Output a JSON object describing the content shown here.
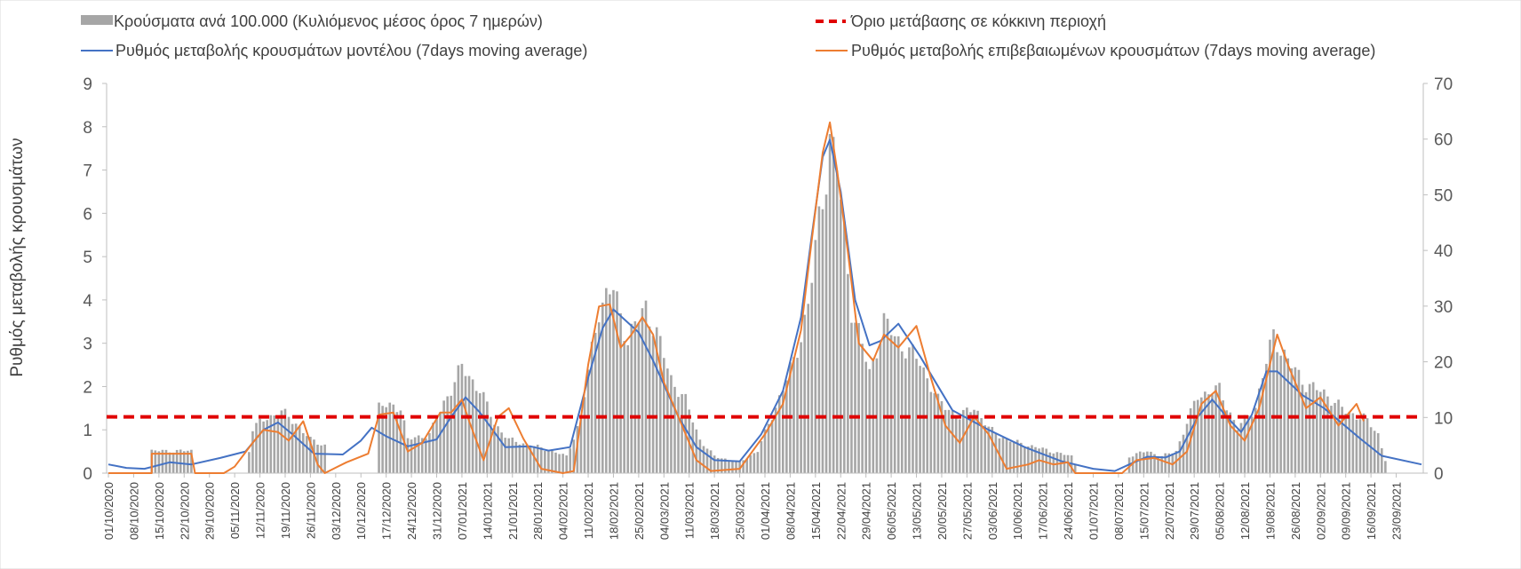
{
  "chart_data": {
    "type": "bar+line",
    "title": "",
    "ylabel_left": "Ρυθμός μεταβολής κρουσμάτων",
    "ylabel_right": "",
    "xlabel": "",
    "ylim_left": [
      0,
      9
    ],
    "yticks_left": [
      0,
      1,
      2,
      3,
      4,
      5,
      6,
      7,
      8,
      9
    ],
    "ylim_right": [
      0,
      70
    ],
    "yticks_right": [
      0,
      10,
      20,
      30,
      40,
      50,
      60,
      70
    ],
    "grid": false,
    "legend_position": "top",
    "legend": {
      "bars": "Κρούσματα ανά 100.000 (Κυλιόμενος μέσος όρος 7 ημερών)",
      "threshold": "Όριο μετάβασης σε κόκκινη περιοχή",
      "model": "Ρυθμός μεταβολής κρουσμάτων μοντέλου (7days moving average)",
      "confirmed": "Ρυθμός μεταβολής επιβεβαιωμένων κρουσμάτων (7days moving average)"
    },
    "colors": {
      "bars": "#a6a6a6",
      "threshold": "#e00000",
      "model": "#4472c4",
      "confirmed": "#ed7d31",
      "axis": "#bfbfbf"
    },
    "x_start": "01/10/2020",
    "x_end": "30/09/2021",
    "date_ticks": [
      "01/10/2020",
      "08/10/2020",
      "15/10/2020",
      "22/10/2020",
      "29/10/2020",
      "05/11/2020",
      "12/11/2020",
      "19/11/2020",
      "26/11/2020",
      "03/12/2020",
      "10/12/2020",
      "17/12/2020",
      "24/12/2020",
      "31/12/2020",
      "07/01/2021",
      "14/01/2021",
      "21/01/2021",
      "28/01/2021",
      "04/02/2021",
      "11/02/2021",
      "18/02/2021",
      "25/02/2021",
      "04/03/2021",
      "11/03/2021",
      "18/03/2021",
      "25/03/2021",
      "01/04/2021",
      "08/04/2021",
      "15/04/2021",
      "22/04/2021",
      "29/04/2021",
      "06/05/2021",
      "13/05/2021",
      "20/05/2021",
      "27/05/2021",
      "03/06/2021",
      "10/06/2021",
      "17/06/2021",
      "24/06/2021",
      "01/07/2021",
      "08/07/2021",
      "15/07/2021",
      "22/07/2021",
      "29/07/2021",
      "05/08/2021",
      "12/08/2021",
      "19/08/2021",
      "26/08/2021",
      "02/09/2021",
      "09/09/2021",
      "16/09/2021",
      "23/09/2021"
    ],
    "threshold_value": 1.3,
    "bars_per100k_keypoints": [
      [
        "01/10/2020",
        0
      ],
      [
        "12/10/2020",
        0
      ],
      [
        "13/10/2020",
        4
      ],
      [
        "24/10/2020",
        4
      ],
      [
        "25/10/2020",
        0
      ],
      [
        "08/11/2020",
        0
      ],
      [
        "10/11/2020",
        8
      ],
      [
        "14/11/2020",
        10
      ],
      [
        "18/11/2020",
        11
      ],
      [
        "22/11/2020",
        9
      ],
      [
        "26/11/2020",
        6
      ],
      [
        "30/11/2020",
        5
      ],
      [
        "01/12/2020",
        0
      ],
      [
        "14/12/2020",
        0
      ],
      [
        "15/12/2020",
        12
      ],
      [
        "21/12/2020",
        12
      ],
      [
        "23/12/2020",
        6
      ],
      [
        "29/12/2020",
        7
      ],
      [
        "03/01/2021",
        14
      ],
      [
        "07/01/2021",
        19
      ],
      [
        "12/01/2021",
        15
      ],
      [
        "16/01/2021",
        9
      ],
      [
        "20/01/2021",
        6
      ],
      [
        "26/01/2021",
        5
      ],
      [
        "01/02/2021",
        4
      ],
      [
        "05/02/2021",
        3
      ],
      [
        "09/02/2021",
        10
      ],
      [
        "14/02/2021",
        30
      ],
      [
        "18/02/2021",
        33
      ],
      [
        "22/02/2021",
        24
      ],
      [
        "27/02/2021",
        30
      ],
      [
        "02/03/2021",
        25
      ],
      [
        "06/03/2021",
        17
      ],
      [
        "10/03/2021",
        13
      ],
      [
        "14/03/2021",
        6
      ],
      [
        "18/03/2021",
        3
      ],
      [
        "25/03/2021",
        2
      ],
      [
        "30/03/2021",
        4
      ],
      [
        "04/04/2021",
        12
      ],
      [
        "09/04/2021",
        20
      ],
      [
        "13/04/2021",
        30
      ],
      [
        "17/04/2021",
        50
      ],
      [
        "19/04/2021",
        60
      ],
      [
        "21/04/2021",
        55
      ],
      [
        "25/04/2021",
        30
      ],
      [
        "30/04/2021",
        18
      ],
      [
        "04/05/2021",
        27
      ],
      [
        "09/05/2021",
        23
      ],
      [
        "14/05/2021",
        20
      ],
      [
        "19/05/2021",
        13
      ],
      [
        "25/05/2021",
        10
      ],
      [
        "29/05/2021",
        12
      ],
      [
        "02/06/2021",
        8
      ],
      [
        "07/06/2021",
        6
      ],
      [
        "13/06/2021",
        5
      ],
      [
        "19/06/2021",
        4
      ],
      [
        "25/06/2021",
        3
      ],
      [
        "27/06/2021",
        0
      ],
      [
        "10/07/2021",
        0
      ],
      [
        "11/07/2021",
        3
      ],
      [
        "16/07/2021",
        4
      ],
      [
        "20/07/2021",
        3
      ],
      [
        "24/07/2021",
        4
      ],
      [
        "30/07/2021",
        14
      ],
      [
        "05/08/2021",
        15
      ],
      [
        "10/08/2021",
        8
      ],
      [
        "15/08/2021",
        12
      ],
      [
        "20/08/2021",
        25
      ],
      [
        "24/08/2021",
        20
      ],
      [
        "29/08/2021",
        16
      ],
      [
        "04/09/2021",
        14
      ],
      [
        "09/09/2021",
        11
      ],
      [
        "14/09/2021",
        10
      ],
      [
        "18/09/2021",
        7
      ],
      [
        "21/09/2021",
        0
      ],
      [
        "30/09/2021",
        0
      ]
    ],
    "model_rate_keypoints": [
      [
        "01/10/2020",
        0.2
      ],
      [
        "06/10/2020",
        0.12
      ],
      [
        "11/10/2020",
        0.1
      ],
      [
        "18/10/2020",
        0.25
      ],
      [
        "24/10/2020",
        0.2
      ],
      [
        "01/11/2020",
        0.35
      ],
      [
        "08/11/2020",
        0.5
      ],
      [
        "13/11/2020",
        1.0
      ],
      [
        "17/11/2020",
        1.17
      ],
      [
        "21/11/2020",
        0.9
      ],
      [
        "27/11/2020",
        0.45
      ],
      [
        "05/12/2020",
        0.43
      ],
      [
        "10/12/2020",
        0.75
      ],
      [
        "13/12/2020",
        1.05
      ],
      [
        "17/12/2020",
        0.85
      ],
      [
        "23/12/2020",
        0.62
      ],
      [
        "31/12/2020",
        0.78
      ],
      [
        "04/01/2021",
        1.3
      ],
      [
        "08/01/2021",
        1.75
      ],
      [
        "12/01/2021",
        1.4
      ],
      [
        "19/01/2021",
        0.6
      ],
      [
        "26/01/2021",
        0.62
      ],
      [
        "31/01/2021",
        0.52
      ],
      [
        "06/02/2021",
        0.6
      ],
      [
        "11/02/2021",
        2.2
      ],
      [
        "15/02/2021",
        3.35
      ],
      [
        "18/02/2021",
        3.78
      ],
      [
        "25/02/2021",
        3.25
      ],
      [
        "01/03/2021",
        2.6
      ],
      [
        "08/03/2021",
        1.3
      ],
      [
        "13/03/2021",
        0.6
      ],
      [
        "18/03/2021",
        0.3
      ],
      [
        "25/03/2021",
        0.27
      ],
      [
        "31/03/2021",
        0.9
      ],
      [
        "06/04/2021",
        1.9
      ],
      [
        "11/04/2021",
        3.6
      ],
      [
        "14/04/2021",
        5.5
      ],
      [
        "17/04/2021",
        7.3
      ],
      [
        "19/04/2021",
        7.7
      ],
      [
        "22/04/2021",
        6.5
      ],
      [
        "26/04/2021",
        4.0
      ],
      [
        "30/04/2021",
        2.95
      ],
      [
        "03/05/2021",
        3.05
      ],
      [
        "08/05/2021",
        3.45
      ],
      [
        "14/05/2021",
        2.7
      ],
      [
        "23/05/2021",
        1.45
      ],
      [
        "02/06/2021",
        1.0
      ],
      [
        "12/06/2021",
        0.6
      ],
      [
        "22/06/2021",
        0.28
      ],
      [
        "01/07/2021",
        0.1
      ],
      [
        "07/07/2021",
        0.05
      ],
      [
        "11/07/2021",
        0.2
      ],
      [
        "16/07/2021",
        0.38
      ],
      [
        "21/07/2021",
        0.36
      ],
      [
        "25/07/2021",
        0.5
      ],
      [
        "30/07/2021",
        1.3
      ],
      [
        "03/08/2021",
        1.7
      ],
      [
        "07/08/2021",
        1.3
      ],
      [
        "11/08/2021",
        0.95
      ],
      [
        "14/08/2021",
        1.35
      ],
      [
        "18/08/2021",
        2.35
      ],
      [
        "21/08/2021",
        2.35
      ],
      [
        "28/08/2021",
        1.8
      ],
      [
        "03/09/2021",
        1.5
      ],
      [
        "13/09/2021",
        0.8
      ],
      [
        "19/09/2021",
        0.4
      ],
      [
        "30/09/2021",
        0.2
      ]
    ],
    "confirmed_rate_keypoints": [
      [
        "01/10/2020",
        0.0
      ],
      [
        "13/10/2020",
        0.0
      ],
      [
        "13/10/2020",
        0.45
      ],
      [
        "24/10/2020",
        0.45
      ],
      [
        "25/10/2020",
        0.0
      ],
      [
        "02/11/2020",
        0.0
      ],
      [
        "05/11/2020",
        0.15
      ],
      [
        "10/11/2020",
        0.7
      ],
      [
        "13/11/2020",
        1.0
      ],
      [
        "17/11/2020",
        0.95
      ],
      [
        "20/11/2020",
        0.75
      ],
      [
        "24/11/2020",
        1.2
      ],
      [
        "28/11/2020",
        0.2
      ],
      [
        "30/11/2020",
        0.0
      ],
      [
        "06/12/2020",
        0.25
      ],
      [
        "12/12/2020",
        0.45
      ],
      [
        "15/12/2020",
        1.35
      ],
      [
        "19/12/2020",
        1.4
      ],
      [
        "23/12/2020",
        0.5
      ],
      [
        "27/12/2020",
        0.7
      ],
      [
        "01/01/2021",
        1.4
      ],
      [
        "04/01/2021",
        1.4
      ],
      [
        "07/01/2021",
        1.7
      ],
      [
        "09/01/2021",
        1.2
      ],
      [
        "13/01/2021",
        0.3
      ],
      [
        "17/01/2021",
        1.3
      ],
      [
        "20/01/2021",
        1.5
      ],
      [
        "24/01/2021",
        0.8
      ],
      [
        "29/01/2021",
        0.1
      ],
      [
        "04/02/2021",
        0.0
      ],
      [
        "07/02/2021",
        0.05
      ],
      [
        "11/02/2021",
        2.5
      ],
      [
        "14/02/2021",
        3.85
      ],
      [
        "17/02/2021",
        3.9
      ],
      [
        "20/02/2021",
        2.9
      ],
      [
        "23/02/2021",
        3.2
      ],
      [
        "26/02/2021",
        3.6
      ],
      [
        "01/03/2021",
        3.2
      ],
      [
        "04/03/2021",
        2.1
      ],
      [
        "08/03/2021",
        1.3
      ],
      [
        "13/03/2021",
        0.3
      ],
      [
        "17/03/2021",
        0.05
      ],
      [
        "25/03/2021",
        0.1
      ],
      [
        "01/04/2021",
        0.9
      ],
      [
        "06/04/2021",
        1.6
      ],
      [
        "11/04/2021",
        3.3
      ],
      [
        "14/04/2021",
        5.4
      ],
      [
        "17/04/2021",
        7.4
      ],
      [
        "19/04/2021",
        8.1
      ],
      [
        "21/04/2021",
        7.0
      ],
      [
        "24/04/2021",
        5.1
      ],
      [
        "27/04/2021",
        3.0
      ],
      [
        "01/05/2021",
        2.6
      ],
      [
        "04/05/2021",
        3.2
      ],
      [
        "08/05/2021",
        2.9
      ],
      [
        "13/05/2021",
        3.4
      ],
      [
        "17/05/2021",
        2.2
      ],
      [
        "21/05/2021",
        1.1
      ],
      [
        "25/05/2021",
        0.7
      ],
      [
        "29/05/2021",
        1.3
      ],
      [
        "02/06/2021",
        0.9
      ],
      [
        "07/06/2021",
        0.1
      ],
      [
        "13/06/2021",
        0.2
      ],
      [
        "16/06/2021",
        0.3
      ],
      [
        "20/06/2021",
        0.2
      ],
      [
        "24/06/2021",
        0.25
      ],
      [
        "26/06/2021",
        0.0
      ],
      [
        "09/07/2021",
        0.0
      ],
      [
        "13/07/2021",
        0.3
      ],
      [
        "18/07/2021",
        0.35
      ],
      [
        "23/07/2021",
        0.2
      ],
      [
        "27/07/2021",
        0.5
      ],
      [
        "31/07/2021",
        1.6
      ],
      [
        "04/08/2021",
        1.9
      ],
      [
        "08/08/2021",
        1.1
      ],
      [
        "12/08/2021",
        0.75
      ],
      [
        "16/08/2021",
        1.5
      ],
      [
        "21/08/2021",
        3.2
      ],
      [
        "24/08/2021",
        2.5
      ],
      [
        "29/08/2021",
        1.5
      ],
      [
        "02/09/2021",
        1.75
      ],
      [
        "07/09/2021",
        1.1
      ],
      [
        "12/09/2021",
        1.6
      ],
      [
        "14/09/2021",
        1.2
      ]
    ]
  }
}
